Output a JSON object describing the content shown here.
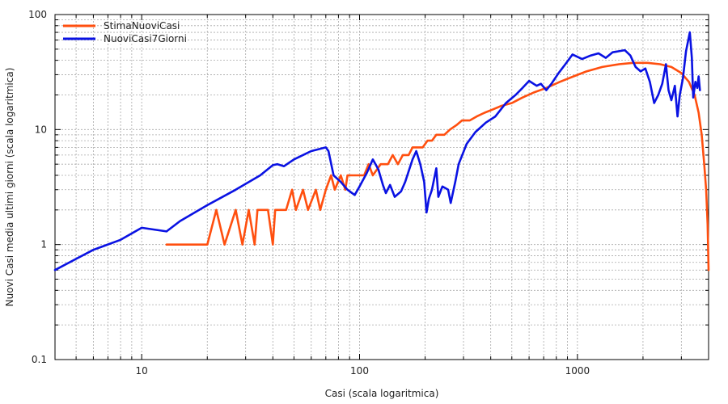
{
  "chart_data": {
    "type": "line",
    "xlabel": "Casi (scala logaritmica)",
    "ylabel": "Nuovi Casi media ultimi giorni (scala logaritmica)",
    "x_scale": "log",
    "y_scale": "log",
    "xlim": [
      4,
      4000
    ],
    "ylim": [
      0.1,
      100
    ],
    "grid": true,
    "legend_position": "top-left",
    "x_ticks": [
      {
        "value": 10,
        "label": "10"
      },
      {
        "value": 100,
        "label": "100"
      },
      {
        "value": 1000,
        "label": "1000"
      }
    ],
    "y_ticks": [
      {
        "value": 0.1,
        "label": "0.1"
      },
      {
        "value": 1,
        "label": "1"
      },
      {
        "value": 10,
        "label": "10"
      },
      {
        "value": 100,
        "label": "100"
      }
    ],
    "series": [
      {
        "name": "StimaNuoviCasi",
        "color": "#ff4f0f",
        "points": [
          [
            13,
            1
          ],
          [
            20,
            1
          ],
          [
            22,
            2
          ],
          [
            24,
            1
          ],
          [
            27,
            2
          ],
          [
            29,
            1
          ],
          [
            31,
            2
          ],
          [
            33,
            1
          ],
          [
            34,
            2
          ],
          [
            38,
            2
          ],
          [
            40,
            1
          ],
          [
            41,
            2
          ],
          [
            46,
            2
          ],
          [
            49,
            3
          ],
          [
            51,
            2
          ],
          [
            55,
            3
          ],
          [
            58,
            2
          ],
          [
            63,
            3
          ],
          [
            66,
            2
          ],
          [
            70,
            3
          ],
          [
            74,
            4
          ],
          [
            77,
            3
          ],
          [
            82,
            4
          ],
          [
            86,
            3
          ],
          [
            88,
            4
          ],
          [
            105,
            4
          ],
          [
            110,
            5
          ],
          [
            115,
            4
          ],
          [
            125,
            5
          ],
          [
            135,
            5
          ],
          [
            142,
            6
          ],
          [
            150,
            5
          ],
          [
            158,
            6
          ],
          [
            168,
            6
          ],
          [
            175,
            7
          ],
          [
            195,
            7
          ],
          [
            205,
            8
          ],
          [
            215,
            8
          ],
          [
            225,
            9
          ],
          [
            245,
            9
          ],
          [
            260,
            10
          ],
          [
            280,
            11
          ],
          [
            295,
            12
          ],
          [
            320,
            12
          ],
          [
            345,
            13
          ],
          [
            375,
            14
          ],
          [
            410,
            15
          ],
          [
            445,
            16
          ],
          [
            500,
            17
          ],
          [
            560,
            19
          ],
          [
            630,
            21
          ],
          [
            720,
            23
          ],
          [
            830,
            26
          ],
          [
            960,
            29
          ],
          [
            1100,
            32
          ],
          [
            1300,
            35
          ],
          [
            1550,
            37
          ],
          [
            1800,
            38
          ],
          [
            2100,
            38
          ],
          [
            2400,
            37
          ],
          [
            2700,
            35
          ],
          [
            3000,
            31
          ],
          [
            3250,
            26
          ],
          [
            3450,
            20
          ],
          [
            3600,
            14
          ],
          [
            3720,
            9
          ],
          [
            3820,
            5
          ],
          [
            3900,
            3
          ],
          [
            3960,
            1.5
          ],
          [
            4000,
            0.6
          ]
        ]
      },
      {
        "name": "NuoviCasi7Giorni",
        "color": "#0a12e3",
        "points": [
          [
            4,
            0.6
          ],
          [
            5,
            0.75
          ],
          [
            6,
            0.9
          ],
          [
            8,
            1.1
          ],
          [
            10,
            1.4
          ],
          [
            13,
            1.3
          ],
          [
            15,
            1.6
          ],
          [
            20,
            2.2
          ],
          [
            27,
            3
          ],
          [
            35,
            4
          ],
          [
            40,
            4.9
          ],
          [
            42,
            5
          ],
          [
            45,
            4.8
          ],
          [
            50,
            5.5
          ],
          [
            60,
            6.5
          ],
          [
            70,
            7
          ],
          [
            72,
            6.5
          ],
          [
            76,
            4
          ],
          [
            82,
            3.5
          ],
          [
            88,
            3
          ],
          [
            95,
            2.7
          ],
          [
            100,
            3.2
          ],
          [
            108,
            4.2
          ],
          [
            115,
            5.5
          ],
          [
            122,
            4.5
          ],
          [
            128,
            3.3
          ],
          [
            132,
            2.8
          ],
          [
            138,
            3.3
          ],
          [
            145,
            2.6
          ],
          [
            155,
            2.9
          ],
          [
            162,
            3.5
          ],
          [
            175,
            5.5
          ],
          [
            182,
            6.5
          ],
          [
            190,
            5
          ],
          [
            198,
            3.5
          ],
          [
            203,
            1.9
          ],
          [
            208,
            2.5
          ],
          [
            215,
            3
          ],
          [
            225,
            4.6
          ],
          [
            230,
            2.6
          ],
          [
            240,
            3.2
          ],
          [
            255,
            3
          ],
          [
            262,
            2.3
          ],
          [
            275,
            3.5
          ],
          [
            285,
            5
          ],
          [
            310,
            7.5
          ],
          [
            340,
            9.5
          ],
          [
            380,
            11.5
          ],
          [
            420,
            13
          ],
          [
            470,
            17
          ],
          [
            520,
            20
          ],
          [
            560,
            23
          ],
          [
            600,
            26.5
          ],
          [
            650,
            24
          ],
          [
            680,
            25
          ],
          [
            720,
            22
          ],
          [
            760,
            25
          ],
          [
            820,
            31
          ],
          [
            880,
            37
          ],
          [
            950,
            45
          ],
          [
            1050,
            41
          ],
          [
            1150,
            44
          ],
          [
            1250,
            46
          ],
          [
            1350,
            42
          ],
          [
            1450,
            47
          ],
          [
            1550,
            48
          ],
          [
            1650,
            49
          ],
          [
            1750,
            44
          ],
          [
            1850,
            35
          ],
          [
            1950,
            32
          ],
          [
            2050,
            34
          ],
          [
            2150,
            26
          ],
          [
            2250,
            17
          ],
          [
            2350,
            20
          ],
          [
            2450,
            25
          ],
          [
            2550,
            37
          ],
          [
            2620,
            22
          ],
          [
            2700,
            18
          ],
          [
            2800,
            24
          ],
          [
            2880,
            13
          ],
          [
            2950,
            20
          ],
          [
            3050,
            28
          ],
          [
            3150,
            48
          ],
          [
            3280,
            70
          ],
          [
            3350,
            42
          ],
          [
            3400,
            19
          ],
          [
            3480,
            26
          ],
          [
            3550,
            23
          ],
          [
            3600,
            29
          ],
          [
            3650,
            22
          ]
        ]
      }
    ]
  }
}
